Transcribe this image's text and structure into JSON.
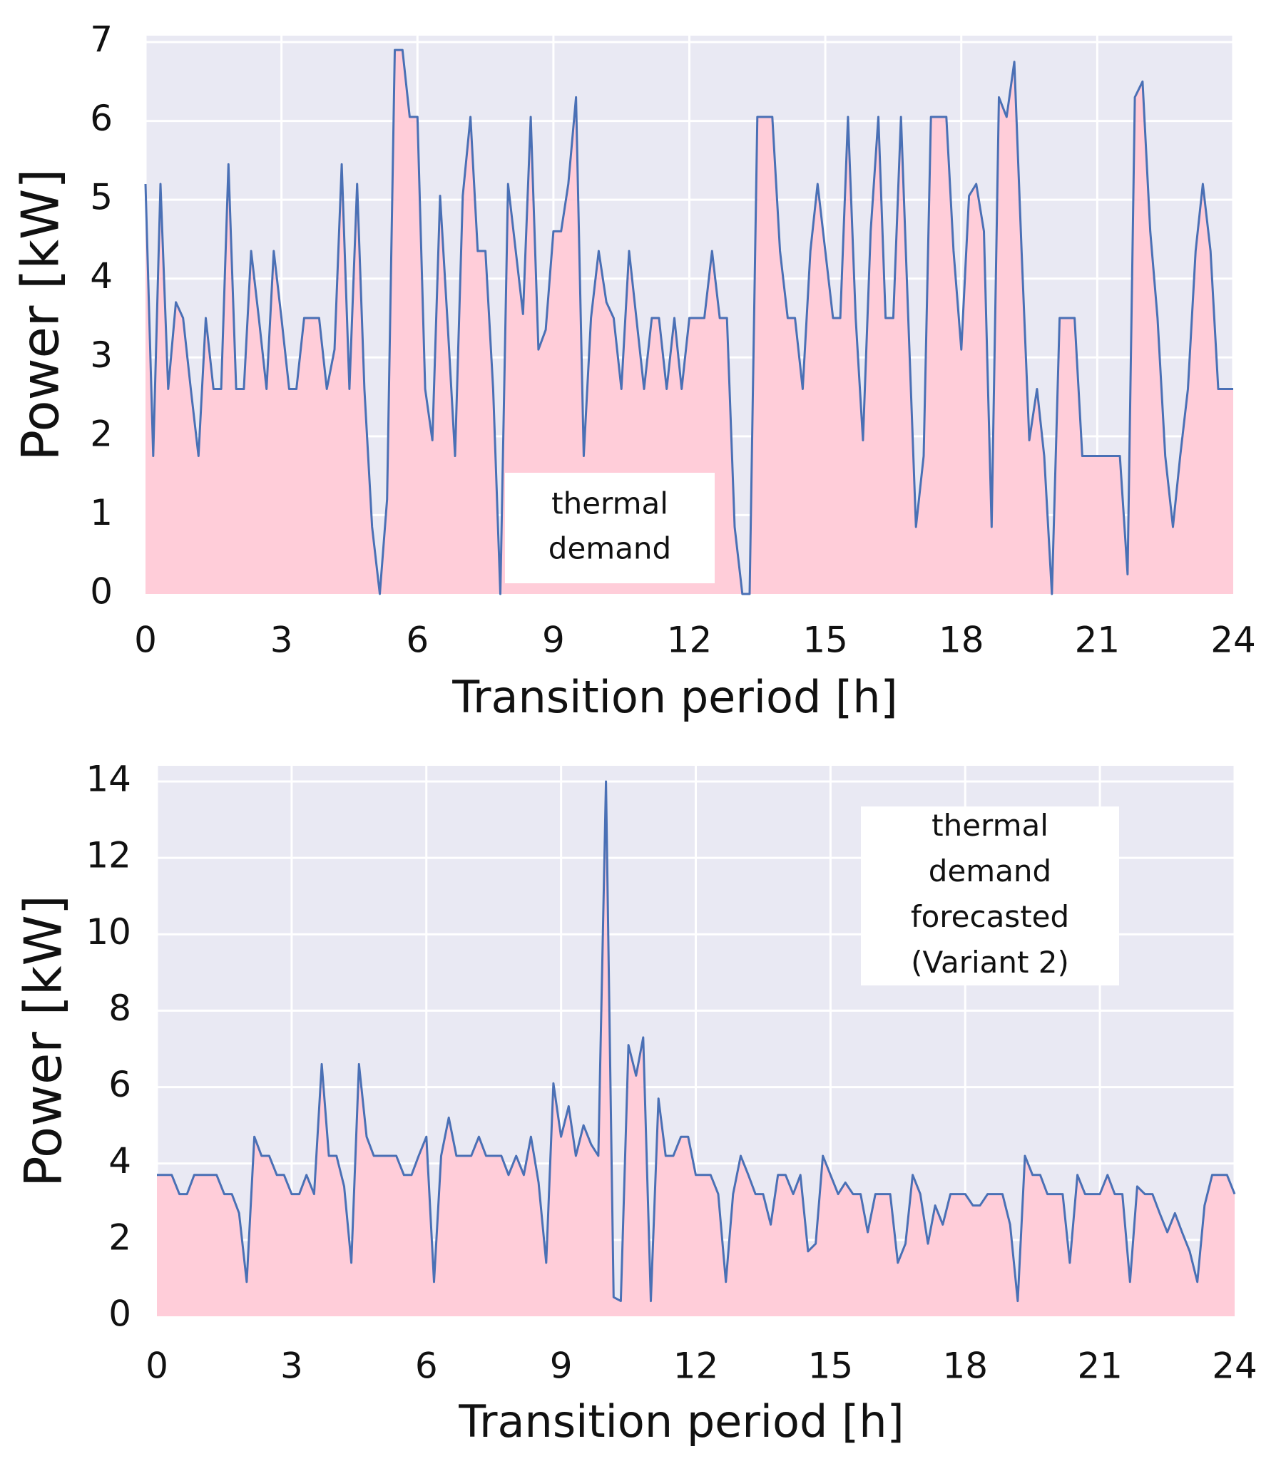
{
  "chart_data": [
    {
      "type": "area",
      "xlabel": "Transition period  [h]",
      "ylabel": "Power [kW]",
      "annotation": [
        "thermal",
        "demand"
      ],
      "xlim": [
        0,
        24
      ],
      "xticks": [
        0,
        3,
        6,
        9,
        12,
        15,
        18,
        21,
        24
      ],
      "ylim": [
        0,
        7
      ],
      "yticks": [
        0,
        1,
        2,
        3,
        4,
        5,
        6,
        7
      ],
      "grid": true,
      "line_color": "#4a70b5",
      "fill_color": "#ffcdd9",
      "background": "#e9e9f3",
      "x": [
        0,
        0.17,
        0.33,
        0.5,
        0.67,
        0.83,
        1,
        1.17,
        1.33,
        1.5,
        1.67,
        1.83,
        2,
        2.17,
        2.33,
        2.5,
        2.67,
        2.83,
        3,
        3.17,
        3.33,
        3.5,
        3.67,
        3.83,
        4,
        4.17,
        4.33,
        4.5,
        4.67,
        4.83,
        5,
        5.17,
        5.33,
        5.5,
        5.67,
        5.83,
        6,
        6.17,
        6.33,
        6.5,
        6.67,
        6.83,
        7,
        7.17,
        7.33,
        7.5,
        7.67,
        7.83,
        8,
        8.17,
        8.33,
        8.5,
        8.67,
        8.83,
        9,
        9.17,
        9.33,
        9.5,
        9.67,
        9.83,
        10,
        10.17,
        10.33,
        10.5,
        10.67,
        10.83,
        11,
        11.17,
        11.33,
        11.5,
        11.67,
        11.83,
        12,
        12.17,
        12.33,
        12.5,
        12.67,
        12.83,
        13,
        13.17,
        13.33,
        13.5,
        13.67,
        13.83,
        14,
        14.17,
        14.33,
        14.5,
        14.67,
        14.83,
        15,
        15.17,
        15.33,
        15.5,
        15.67,
        15.83,
        16,
        16.17,
        16.33,
        16.5,
        16.67,
        16.83,
        17,
        17.17,
        17.33,
        17.5,
        17.67,
        17.83,
        18,
        18.17,
        18.33,
        18.5,
        18.67,
        18.83,
        19,
        19.17,
        19.33,
        19.5,
        19.67,
        19.83,
        20,
        20.17,
        20.33,
        20.5,
        20.67,
        20.83,
        21,
        21.17,
        21.33,
        21.5,
        21.67,
        21.83,
        22,
        22.17,
        22.33,
        22.5,
        22.67,
        22.83,
        23,
        23.17,
        23.33,
        23.5,
        23.67,
        23.83,
        24
      ],
      "values": [
        5.2,
        1.75,
        5.2,
        2.6,
        3.7,
        3.5,
        2.6,
        1.75,
        3.5,
        2.6,
        2.6,
        5.45,
        2.6,
        2.6,
        4.35,
        3.5,
        2.6,
        4.35,
        3.5,
        2.6,
        2.6,
        3.5,
        3.5,
        3.5,
        2.6,
        3.1,
        5.45,
        2.6,
        5.2,
        2.6,
        0.85,
        0,
        1.2,
        6.9,
        6.9,
        6.05,
        6.05,
        2.6,
        1.95,
        5.05,
        3.4,
        1.75,
        5.05,
        6.05,
        4.35,
        4.35,
        2.6,
        0,
        5.2,
        4.35,
        3.55,
        6.05,
        3.1,
        3.35,
        4.6,
        4.6,
        5.2,
        6.3,
        1.75,
        3.5,
        4.35,
        3.7,
        3.5,
        2.6,
        4.35,
        3.5,
        2.6,
        3.5,
        3.5,
        2.6,
        3.5,
        2.6,
        3.5,
        3.5,
        3.5,
        4.35,
        3.5,
        3.5,
        0.85,
        0,
        0,
        6.05,
        6.05,
        6.05,
        4.35,
        3.5,
        3.5,
        2.6,
        4.35,
        5.2,
        4.35,
        3.5,
        3.5,
        6.05,
        3.5,
        1.95,
        4.6,
        6.05,
        3.5,
        3.5,
        6.05,
        3.5,
        0.85,
        1.75,
        6.05,
        6.05,
        6.05,
        4.35,
        3.1,
        5.05,
        5.2,
        4.6,
        0.85,
        6.3,
        6.05,
        6.75,
        4.35,
        1.95,
        2.6,
        1.75,
        0,
        3.5,
        3.5,
        3.5,
        1.75,
        1.75,
        1.75,
        1.75,
        1.75,
        1.75,
        0.25,
        6.3,
        6.5,
        4.6,
        3.5,
        1.75,
        0.85,
        1.75,
        2.6,
        4.35,
        5.2,
        4.35,
        2.6,
        2.6,
        2.6
      ]
    },
    {
      "type": "area",
      "xlabel": "Transition period  [h]",
      "ylabel": "Power [kW]",
      "annotation": [
        "thermal",
        "demand",
        "forecasted",
        "(Variant 2)"
      ],
      "xlim": [
        0,
        24
      ],
      "xticks": [
        0,
        3,
        6,
        9,
        12,
        15,
        18,
        21,
        24
      ],
      "ylim": [
        0,
        14
      ],
      "yticks": [
        0,
        2,
        4,
        6,
        8,
        10,
        12,
        14
      ],
      "grid": true,
      "line_color": "#4a70b5",
      "fill_color": "#ffcdd9",
      "background": "#e9e9f3",
      "x": [
        0,
        0.17,
        0.33,
        0.5,
        0.67,
        0.83,
        1,
        1.17,
        1.33,
        1.5,
        1.67,
        1.83,
        2,
        2.17,
        2.33,
        2.5,
        2.67,
        2.83,
        3,
        3.17,
        3.33,
        3.5,
        3.67,
        3.83,
        4,
        4.17,
        4.33,
        4.5,
        4.67,
        4.83,
        5,
        5.17,
        5.33,
        5.5,
        5.67,
        5.83,
        6,
        6.17,
        6.33,
        6.5,
        6.67,
        6.83,
        7,
        7.17,
        7.33,
        7.5,
        7.67,
        7.83,
        8,
        8.17,
        8.33,
        8.5,
        8.67,
        8.83,
        9,
        9.17,
        9.33,
        9.5,
        9.67,
        9.83,
        10,
        10.17,
        10.33,
        10.5,
        10.67,
        10.83,
        11,
        11.17,
        11.33,
        11.5,
        11.67,
        11.83,
        12,
        12.17,
        12.33,
        12.5,
        12.67,
        12.83,
        13,
        13.17,
        13.33,
        13.5,
        13.67,
        13.83,
        14,
        14.17,
        14.33,
        14.5,
        14.67,
        14.83,
        15,
        15.17,
        15.33,
        15.5,
        15.67,
        15.83,
        16,
        16.17,
        16.33,
        16.5,
        16.67,
        16.83,
        17,
        17.17,
        17.33,
        17.5,
        17.67,
        17.83,
        18,
        18.17,
        18.33,
        18.5,
        18.67,
        18.83,
        19,
        19.17,
        19.33,
        19.5,
        19.67,
        19.83,
        20,
        20.17,
        20.33,
        20.5,
        20.67,
        20.83,
        21,
        21.17,
        21.33,
        21.5,
        21.67,
        21.83,
        22,
        22.17,
        22.33,
        22.5,
        22.67,
        22.83,
        23,
        23.17,
        23.33,
        23.5,
        23.67,
        23.83,
        24
      ],
      "values": [
        3.7,
        3.7,
        3.7,
        3.2,
        3.2,
        3.7,
        3.7,
        3.7,
        3.7,
        3.2,
        3.2,
        2.7,
        0.9,
        4.7,
        4.2,
        4.2,
        3.7,
        3.7,
        3.2,
        3.2,
        3.7,
        3.2,
        6.6,
        4.2,
        4.2,
        3.4,
        1.4,
        6.6,
        4.7,
        4.2,
        4.2,
        4.2,
        4.2,
        3.7,
        3.7,
        4.2,
        4.7,
        0.9,
        4.2,
        5.2,
        4.2,
        4.2,
        4.2,
        4.7,
        4.2,
        4.2,
        4.2,
        3.7,
        4.2,
        3.7,
        4.7,
        3.5,
        1.4,
        6.1,
        4.7,
        5.5,
        4.2,
        5.0,
        4.5,
        4.2,
        14.0,
        0.5,
        0.4,
        7.1,
        6.3,
        7.3,
        0.4,
        5.7,
        4.2,
        4.2,
        4.7,
        4.7,
        3.7,
        3.7,
        3.7,
        3.2,
        0.9,
        3.2,
        4.2,
        3.7,
        3.2,
        3.2,
        2.4,
        3.7,
        3.7,
        3.2,
        3.7,
        1.7,
        1.9,
        4.2,
        3.7,
        3.2,
        3.5,
        3.2,
        3.2,
        2.2,
        3.2,
        3.2,
        3.2,
        1.4,
        1.9,
        3.7,
        3.2,
        1.9,
        2.9,
        2.4,
        3.2,
        3.2,
        3.2,
        2.9,
        2.9,
        3.2,
        3.2,
        3.2,
        2.4,
        0.4,
        4.2,
        3.7,
        3.7,
        3.2,
        3.2,
        3.2,
        1.4,
        3.7,
        3.2,
        3.2,
        3.2,
        3.7,
        3.2,
        3.2,
        0.9,
        3.4,
        3.2,
        3.2,
        2.7,
        2.2,
        2.7,
        2.2,
        1.7,
        0.9,
        2.9,
        3.7,
        3.7,
        3.7,
        3.2
      ]
    }
  ]
}
